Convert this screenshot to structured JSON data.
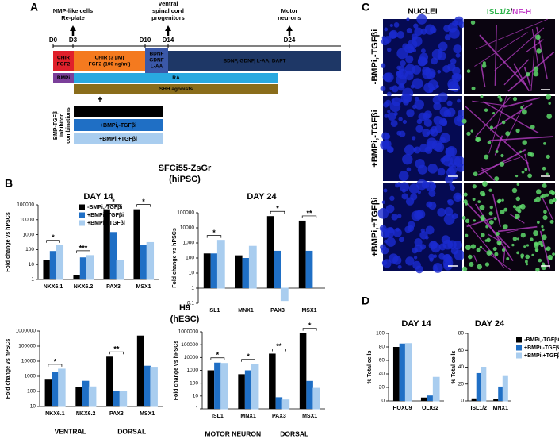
{
  "panel_labels": [
    "A",
    "B",
    "C",
    "D"
  ],
  "panel_a": {
    "days": [
      "D0",
      "D3",
      "D10",
      "D14",
      "D24"
    ],
    "milestones": [
      [
        "NMP-like cells",
        "Re-plate"
      ],
      [
        "Ventral",
        "spinal cord",
        "progenitors"
      ],
      [
        "Motor",
        "neurons"
      ]
    ],
    "boxes": [
      [
        "CHIR",
        "FGF2"
      ],
      [
        "CHIR (3 μM)",
        "FGF2 (100 ng/ml)"
      ],
      [
        "BDNF",
        "GDNF",
        "L-AA"
      ],
      [
        "BDNF, GDNF, L-AA, DAPT"
      ],
      [
        "BMPi"
      ],
      [
        "RA"
      ],
      [
        "SHH agonists"
      ]
    ],
    "plus": "+",
    "combinations": [
      "-BMPi,-TGFβi",
      "+BMPi,-TGFβi",
      "+BMPi,+TGFβi"
    ],
    "combinations_label": [
      "BMP-TGFβ",
      "inhibitor",
      "combinations"
    ]
  },
  "panel_b": {
    "cell_lines": [
      [
        "SFCi55-ZsGr",
        "(hiPSC)"
      ],
      [
        "H9",
        "(hESC)"
      ]
    ]
  },
  "panel_c": {
    "nuclei": "NUCLEI",
    "merge": [
      "ISL1/2",
      "/",
      "NF-H"
    ],
    "rows": [
      "-BMPi,-TGFβi",
      "+BMPi,-TGFβi",
      "+BMPi,+TGFβi"
    ]
  },
  "chart_data": [
    {
      "type": "bar",
      "title": "DAY 14",
      "y_label": "Fold change vs hPSCs",
      "log_scale": true,
      "ylim": [
        1,
        100000
      ],
      "yticks": [
        1,
        10,
        100,
        1000,
        10000,
        100000
      ],
      "categories": [
        "NKX6.1",
        "NKX6.2",
        "PAX3",
        "MSX1"
      ],
      "series": [
        {
          "name": "-BMPi,-TGFβi",
          "color": "#000000",
          "values": [
            20,
            2,
            50000,
            50000
          ]
        },
        {
          "name": "+BMPi,-TGFβi",
          "color": "#1f6fc5",
          "values": [
            80,
            30,
            1500,
            200
          ]
        },
        {
          "name": "+BMPi,+TGFβi",
          "color": "#a9cdef",
          "values": [
            200,
            40,
            20,
            300
          ]
        }
      ],
      "significance": [
        "*",
        "***",
        "*",
        "*"
      ],
      "legend": "upper right"
    },
    {
      "type": "bar",
      "title": "DAY 24",
      "y_label": "Fold change vs hPSCs",
      "log_scale": true,
      "ylim": [
        0.1,
        100000
      ],
      "yticks": [
        0.1,
        1,
        10,
        100,
        1000,
        10000,
        100000
      ],
      "categories": [
        "ISL1",
        "MNX1",
        "PAX3",
        "MSX1"
      ],
      "series": [
        {
          "name": "-BMPi,-TGFβi",
          "color": "#000000",
          "values": [
            200,
            150,
            60000,
            30000
          ]
        },
        {
          "name": "+BMPi,-TGFβi",
          "color": "#1f6fc5",
          "values": [
            200,
            100,
            300,
            300
          ]
        },
        {
          "name": "+BMPi,+TGFβi",
          "color": "#a9cdef",
          "values": [
            1500,
            600,
            0.15,
            null
          ]
        }
      ],
      "significance": [
        "*",
        null,
        "*",
        "**"
      ]
    },
    {
      "type": "bar",
      "y_label": "Fold change vs hPSCs",
      "log_scale": true,
      "ylim": [
        10,
        1000000
      ],
      "yticks": [
        10,
        100,
        1000,
        10000,
        100000,
        1000000
      ],
      "categories": [
        "NKX6.1",
        "NKX6.2",
        "PAX3",
        "MSX1"
      ],
      "series": [
        {
          "name": "-BMPi,-TGFβi",
          "color": "#000000",
          "values": [
            600,
            200,
            20000,
            500000
          ]
        },
        {
          "name": "+BMPi,-TGFβi",
          "color": "#1f6fc5",
          "values": [
            2000,
            500,
            100,
            5000
          ]
        },
        {
          "name": "+BMPi,+TGFβi",
          "color": "#a9cdef",
          "values": [
            3000,
            200,
            100,
            4000
          ]
        }
      ],
      "significance": [
        "*",
        null,
        "**",
        null
      ],
      "group_labels": [
        "VENTRAL",
        "DORSAL"
      ]
    },
    {
      "type": "bar",
      "y_label": "Fold change vs hPSCs",
      "log_scale": true,
      "ylim": [
        1,
        1000000
      ],
      "yticks": [
        1,
        10,
        100,
        1000,
        10000,
        100000,
        1000000
      ],
      "categories": [
        "ISL1",
        "MNX1",
        "PAX3",
        "MSX1"
      ],
      "series": [
        {
          "name": "-BMPi,-TGFβi",
          "color": "#000000",
          "values": [
            1000,
            500,
            20000,
            800000
          ]
        },
        {
          "name": "+BMPi,-TGFβi",
          "color": "#1f6fc5",
          "values": [
            4000,
            1000,
            8,
            150
          ]
        },
        {
          "name": "+BMPi,+TGFβi",
          "color": "#a9cdef",
          "values": [
            3500,
            3000,
            5,
            40
          ]
        }
      ],
      "significance": [
        "*",
        "*",
        "**",
        "*"
      ],
      "group_labels": [
        "MOTOR NEURON",
        "DORSAL"
      ]
    },
    {
      "type": "bar",
      "title": "DAY 14",
      "y_label": "% Total cells",
      "log_scale": false,
      "ylim": [
        0,
        100
      ],
      "yticks": [
        0,
        20,
        40,
        60,
        80,
        100
      ],
      "categories": [
        "HOXC9",
        "OLIG2"
      ],
      "series": [
        {
          "name": "-BMPi,-TGFβi",
          "color": "#000000",
          "values": [
            80,
            5
          ]
        },
        {
          "name": "+BMPi,-TGFβi",
          "color": "#1f6fc5",
          "values": [
            85,
            8
          ]
        },
        {
          "name": "+BMPi,+TGFβi",
          "color": "#a9cdef",
          "values": [
            85,
            35
          ]
        }
      ]
    },
    {
      "type": "bar",
      "title": "DAY 24",
      "y_label": "% Total cells",
      "log_scale": false,
      "ylim": [
        0,
        80
      ],
      "yticks": [
        0,
        20,
        40,
        60,
        80
      ],
      "categories": [
        "ISL1/2",
        "MNX1"
      ],
      "series": [
        {
          "name": "-BMPi,-TGFβi",
          "color": "#000000",
          "values": [
            3,
            2
          ]
        },
        {
          "name": "+BMPi,-TGFβi",
          "color": "#1f6fc5",
          "values": [
            33,
            17
          ]
        },
        {
          "name": "+BMPi,+TGFβi",
          "color": "#a9cdef",
          "values": [
            40,
            29
          ]
        }
      ],
      "legend": "right"
    }
  ]
}
